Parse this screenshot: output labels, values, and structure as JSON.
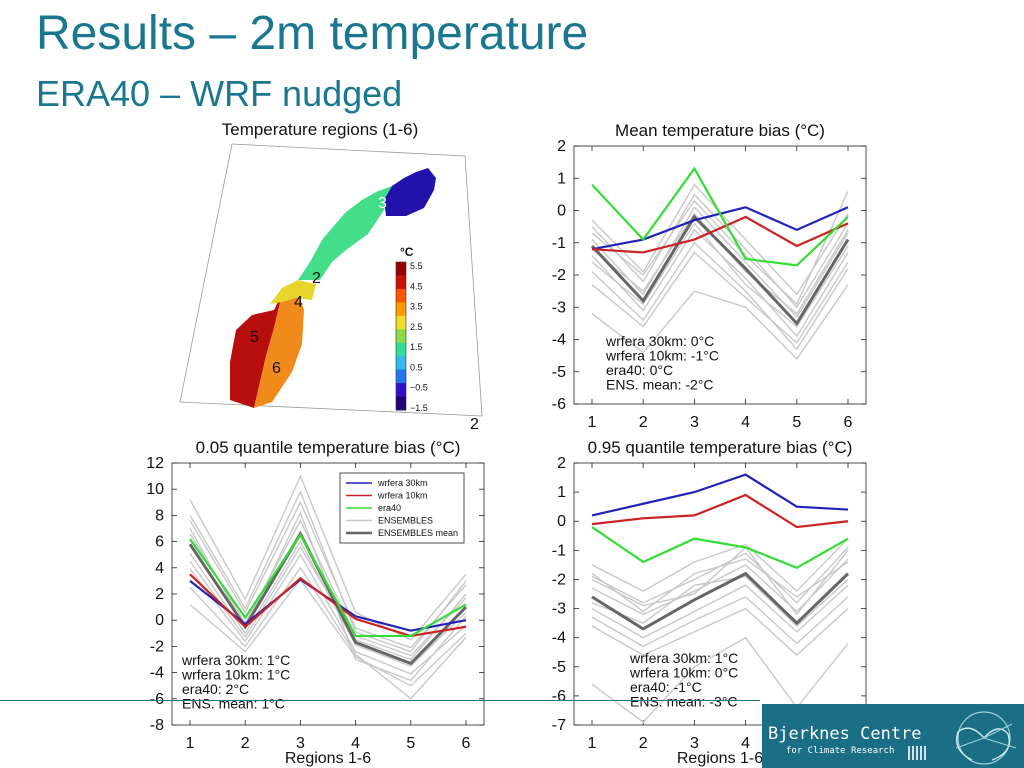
{
  "header": {
    "title": "Results – 2m temperature",
    "subtitle": "ERA40 – WRF nudged"
  },
  "colors": {
    "title": "#1a7790",
    "wrf30": "#2222bb",
    "wrf10": "#cc2222",
    "era40": "#33dd33",
    "ensembles": "#c8c8c8",
    "ens_mean": "#666666",
    "logo_bg": "#1a6e86"
  },
  "map": {
    "title": "Temperature regions (1-6)",
    "region_labels": [
      "2",
      "3",
      "4",
      "5",
      "6"
    ],
    "colorbar_unit": "°C",
    "colorbar_ticks": [
      "5.5",
      "4.5",
      "3.5",
      "2.5",
      "1.5",
      "0.5",
      "−0.5",
      "−1.5"
    ],
    "colorbar_colors": [
      "#990000",
      "#cc1100",
      "#ff5500",
      "#ff9900",
      "#eedd22",
      "#88dd44",
      "#33dd99",
      "#33bbee",
      "#2277ee",
      "#3311cc",
      "#22007a"
    ],
    "stray_label": "2"
  },
  "chart_data": [
    {
      "type": "line",
      "title": "Mean temperature bias (°C)",
      "xlabel": "",
      "x": [
        1,
        2,
        3,
        4,
        5,
        6
      ],
      "ylim": [
        -6,
        2
      ],
      "yticks": [
        2,
        1,
        0,
        -1,
        -2,
        -3,
        -4,
        -5,
        -6
      ],
      "series": [
        {
          "name": "wrfera 30km",
          "values": [
            -1.2,
            -0.9,
            -0.3,
            0.1,
            -0.6,
            0.1
          ]
        },
        {
          "name": "wrfera 10km",
          "values": [
            -1.2,
            -1.3,
            -0.9,
            -0.2,
            -1.1,
            -0.4
          ]
        },
        {
          "name": "era40",
          "values": [
            0.8,
            -0.9,
            1.3,
            -1.5,
            -1.7,
            -0.2
          ]
        },
        {
          "name": "ENSEMBLES mean",
          "values": [
            -1.1,
            -2.8,
            -0.2,
            -1.8,
            -3.5,
            -0.9
          ]
        }
      ],
      "ensembles": [
        [
          -0.5,
          -2.2,
          0.5,
          -1.2,
          -3.0,
          -0.4
        ],
        [
          -0.9,
          -2.6,
          0.1,
          -1.6,
          -3.3,
          -0.7
        ],
        [
          -1.4,
          -3.1,
          -0.6,
          -2.1,
          -3.9,
          -1.3
        ],
        [
          -1.9,
          -3.4,
          -1.0,
          -2.5,
          -4.3,
          -1.8
        ],
        [
          -0.3,
          -1.9,
          0.8,
          -0.9,
          -2.6,
          -0.1
        ],
        [
          -1.6,
          -2.9,
          -0.4,
          -2.3,
          -3.6,
          -1.1
        ],
        [
          -3.2,
          -4.4,
          -2.5,
          -3.0,
          -4.6,
          -2.3
        ],
        [
          -0.7,
          -2.0,
          0.3,
          -1.4,
          -2.9,
          0.6
        ],
        [
          -1.2,
          -2.5,
          -0.1,
          -1.9,
          -3.2,
          -0.6
        ],
        [
          -2.3,
          -3.6,
          -1.3,
          -2.7,
          -4.1,
          -1.6
        ]
      ],
      "annotation": [
        "wrfera 30km:  0°C",
        "wrfera 10km: -1°C",
        "era40:            0°C",
        "ENS. mean:  -2°C"
      ]
    },
    {
      "type": "line",
      "title": "0.05 quantile temperature bias (°C)",
      "xlabel": "Regions 1-6",
      "x": [
        1,
        2,
        3,
        4,
        5,
        6
      ],
      "ylim": [
        -8,
        12
      ],
      "yticks": [
        12,
        10,
        8,
        6,
        4,
        2,
        0,
        -2,
        -4,
        -6,
        -8
      ],
      "series": [
        {
          "name": "wrfera 30km",
          "values": [
            3.0,
            -0.3,
            3.1,
            0.3,
            -0.8,
            0.0
          ]
        },
        {
          "name": "wrfera 10km",
          "values": [
            3.5,
            -0.5,
            3.2,
            0.1,
            -1.2,
            -0.5
          ]
        },
        {
          "name": "era40",
          "values": [
            6.2,
            0.2,
            6.5,
            -1.2,
            -1.2,
            1.2
          ]
        },
        {
          "name": "ENSEMBLES mean",
          "values": [
            5.8,
            -0.5,
            6.6,
            -1.7,
            -3.3,
            1.0
          ]
        }
      ],
      "legend": {
        "labels": [
          "wrfera 30km",
          "wrfera 10km",
          "era40",
          "ENSEMBLES",
          "ENSEMBLES mean"
        ],
        "placement": "top-right"
      },
      "ensembles": [
        [
          9.2,
          1.6,
          11.0,
          0.6,
          -1.5,
          3.5
        ],
        [
          7.6,
          0.6,
          9.0,
          -0.6,
          -2.1,
          2.7
        ],
        [
          6.6,
          -0.2,
          7.6,
          -1.2,
          -2.7,
          1.7
        ],
        [
          5.1,
          -1.0,
          6.0,
          -1.9,
          -3.5,
          0.6
        ],
        [
          3.9,
          -1.6,
          5.0,
          -2.4,
          -4.1,
          -0.4
        ],
        [
          1.2,
          -2.4,
          3.1,
          -2.8,
          -5.0,
          -1.0
        ],
        [
          7.0,
          -0.6,
          8.2,
          -3.0,
          -4.6,
          0.3
        ],
        [
          4.5,
          -1.3,
          5.6,
          -1.5,
          -3.0,
          2.0
        ],
        [
          2.5,
          -2.0,
          4.0,
          -2.6,
          -6.0,
          -1.3
        ],
        [
          8.0,
          0.9,
          9.8,
          -0.9,
          -2.4,
          3.0
        ]
      ],
      "annotation": [
        "wrfera 30km: 1°C",
        "wrfera 10km: 1°C",
        "era40:            2°C",
        "ENS. mean:   1°C"
      ]
    },
    {
      "type": "line",
      "title": "0.95 quantile temperature bias (°C)",
      "xlabel": "Regions 1-6",
      "x": [
        1,
        2,
        3,
        4,
        5,
        6
      ],
      "ylim": [
        -7,
        2
      ],
      "yticks": [
        2,
        1,
        0,
        -1,
        -2,
        -3,
        -4,
        -5,
        -6,
        -7
      ],
      "series": [
        {
          "name": "wrfera 30km",
          "values": [
            0.2,
            0.6,
            1.0,
            1.6,
            0.5,
            0.4
          ]
        },
        {
          "name": "wrfera 10km",
          "values": [
            -0.1,
            0.1,
            0.2,
            0.9,
            -0.2,
            0.0
          ]
        },
        {
          "name": "era40",
          "values": [
            -0.2,
            -1.4,
            -0.6,
            -0.9,
            -1.6,
            -0.6
          ]
        },
        {
          "name": "ENSEMBLES mean",
          "values": [
            -2.6,
            -3.7,
            -2.7,
            -1.8,
            -3.5,
            -1.8
          ]
        }
      ],
      "ensembles": [
        [
          -1.5,
          -2.4,
          -1.4,
          -0.8,
          -2.4,
          -0.6
        ],
        [
          -1.9,
          -2.8,
          -2.0,
          -1.1,
          -2.8,
          -0.9
        ],
        [
          -2.3,
          -3.2,
          -2.4,
          -1.5,
          -3.1,
          -1.3
        ],
        [
          -3.0,
          -4.0,
          -3.1,
          -2.2,
          -3.8,
          -2.2
        ],
        [
          -3.3,
          -4.3,
          -3.4,
          -2.6,
          -4.2,
          -2.6
        ],
        [
          -2.0,
          -2.9,
          -2.5,
          -0.9,
          -3.2,
          -1.0
        ],
        [
          -5.6,
          -6.9,
          -5.0,
          -4.0,
          -6.4,
          -4.2
        ],
        [
          -2.8,
          -3.5,
          -2.2,
          -1.9,
          -3.6,
          -2.0
        ],
        [
          -1.8,
          -3.1,
          -1.8,
          -1.3,
          -2.6,
          -1.4
        ],
        [
          -3.6,
          -4.6,
          -3.8,
          -3.0,
          -4.6,
          -3.0
        ]
      ],
      "annotation": [
        "wrfera 30km: 1°C",
        "wrfera 10km: 0°C",
        "era40:            -1°C",
        "ENS. mean:  -3°C"
      ]
    }
  ],
  "logo": {
    "name": "Bjerknes Centre",
    "tagline": "for Climate Research"
  }
}
